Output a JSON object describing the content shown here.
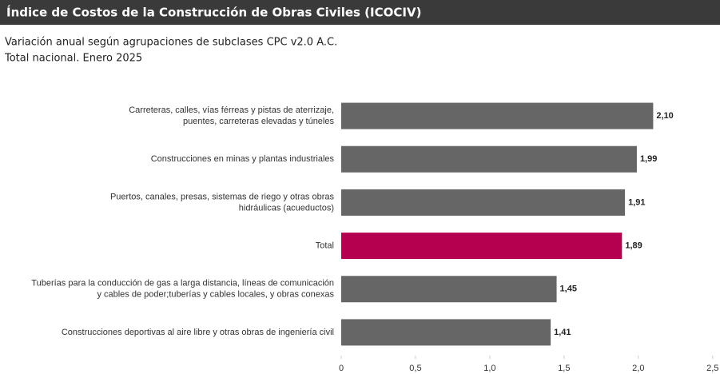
{
  "chart_data": {
    "type": "barh",
    "title": "Índice de Costos de la Construcción de Obras Civiles (ICOCIV)",
    "subtitle": [
      "Variación anual según agrupaciones de subclases CPC v2.0 A.C.",
      "Total nacional. Enero 2025"
    ],
    "categories": [
      [
        "Carreteras, calles, vías férreas y pistas de aterrizaje,",
        "puentes, carreteras elevadas y túneles"
      ],
      [
        "Construcciones en minas y plantas industriales"
      ],
      [
        "Puertos, canales, presas, sistemas de riego y otras obras",
        "hidráulicas (acueductos)"
      ],
      [
        "Total"
      ],
      [
        "Tuberías para la conducción de gas a larga distancia, líneas de comunicación",
        "y cables de poder;tuberías y cables locales, y obras conexas"
      ],
      [
        "Construcciones deportivas al aire libre y otras obras de ingeniería civil"
      ]
    ],
    "values": [
      2.1,
      1.99,
      1.91,
      1.89,
      1.45,
      1.41
    ],
    "value_labels": [
      "2,10",
      "1,99",
      "1,91",
      "1,89",
      "1,45",
      "1,41"
    ],
    "colors": [
      "#666666",
      "#666666",
      "#666666",
      "#b5004f",
      "#666666",
      "#666666"
    ],
    "xlim": [
      0,
      2.5
    ],
    "xticks": [
      0,
      {
        "value": 0.5,
        "label": "0,5"
      },
      {
        "value": 1.0,
        "label": "1,0"
      },
      {
        "value": 1.5,
        "label": "1,5"
      },
      {
        "value": 2.0,
        "label": "2,0"
      },
      {
        "value": 2.5,
        "label": "2,5"
      }
    ]
  }
}
